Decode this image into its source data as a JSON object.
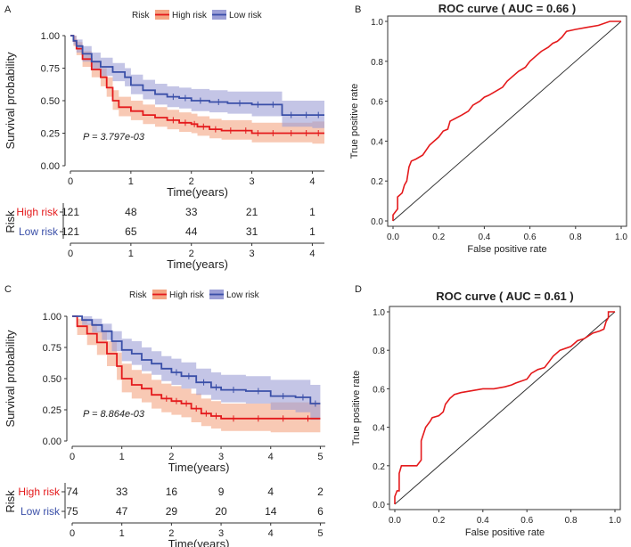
{
  "figure": {
    "panel_labels": [
      "A",
      "B",
      "C",
      "D"
    ]
  },
  "colors": {
    "high": "#e41a1c",
    "low": "#3a4fa8",
    "high_band": "#f4a582",
    "low_band": "#9c9fd6",
    "roc": "#e41a1c",
    "text": "#222222"
  },
  "chart_data": [
    {
      "id": "A",
      "type": "line",
      "title": "",
      "legend": {
        "title": "Risk",
        "items": [
          "High risk",
          "Low risk"
        ],
        "position": "top"
      },
      "xlabel": "Time(years)",
      "ylabel": "Survival probability",
      "xlim": [
        0,
        4.2
      ],
      "ylim": [
        0,
        1
      ],
      "xticks": [
        "0",
        "1",
        "2",
        "3",
        "4"
      ],
      "yticks": [
        "0.00",
        "0.25",
        "0.50",
        "0.75",
        "1.00"
      ],
      "pvalue": "P = 3.797e-03",
      "series": [
        {
          "name": "High risk",
          "x": [
            0,
            0.05,
            0.1,
            0.2,
            0.35,
            0.5,
            0.6,
            0.7,
            0.8,
            1.0,
            1.2,
            1.4,
            1.6,
            1.8,
            2.0,
            2.1,
            2.3,
            2.5,
            2.8,
            3.0,
            3.2,
            3.5,
            3.8,
            4.0,
            4.2
          ],
          "y": [
            1.0,
            0.96,
            0.9,
            0.82,
            0.74,
            0.68,
            0.6,
            0.5,
            0.45,
            0.42,
            0.39,
            0.37,
            0.35,
            0.33,
            0.32,
            0.3,
            0.28,
            0.27,
            0.27,
            0.25,
            0.25,
            0.25,
            0.25,
            0.25,
            0.25
          ],
          "lower": [
            1.0,
            0.92,
            0.85,
            0.76,
            0.68,
            0.61,
            0.53,
            0.43,
            0.38,
            0.35,
            0.32,
            0.3,
            0.28,
            0.26,
            0.25,
            0.23,
            0.21,
            0.2,
            0.2,
            0.18,
            0.18,
            0.18,
            0.18,
            0.17,
            0.17
          ],
          "upper": [
            1.0,
            1.0,
            0.95,
            0.88,
            0.8,
            0.75,
            0.68,
            0.58,
            0.53,
            0.5,
            0.47,
            0.45,
            0.43,
            0.41,
            0.4,
            0.38,
            0.36,
            0.35,
            0.35,
            0.33,
            0.33,
            0.33,
            0.33,
            0.34,
            0.34
          ]
        },
        {
          "name": "Low risk",
          "x": [
            0,
            0.05,
            0.1,
            0.2,
            0.35,
            0.5,
            0.7,
            0.9,
            1.0,
            1.2,
            1.4,
            1.6,
            1.8,
            2.0,
            2.3,
            2.6,
            3.0,
            3.2,
            3.5,
            3.8,
            4.0,
            4.2
          ],
          "y": [
            1.0,
            0.96,
            0.92,
            0.86,
            0.8,
            0.76,
            0.72,
            0.68,
            0.62,
            0.58,
            0.55,
            0.53,
            0.52,
            0.5,
            0.49,
            0.48,
            0.47,
            0.47,
            0.39,
            0.39,
            0.39,
            0.39
          ],
          "lower": [
            1.0,
            0.93,
            0.87,
            0.8,
            0.74,
            0.69,
            0.65,
            0.61,
            0.55,
            0.51,
            0.47,
            0.45,
            0.44,
            0.42,
            0.41,
            0.4,
            0.38,
            0.38,
            0.3,
            0.3,
            0.29,
            0.29
          ],
          "upper": [
            1.0,
            1.0,
            0.97,
            0.92,
            0.87,
            0.83,
            0.79,
            0.75,
            0.7,
            0.66,
            0.63,
            0.61,
            0.6,
            0.59,
            0.58,
            0.57,
            0.57,
            0.57,
            0.5,
            0.5,
            0.5,
            0.5
          ]
        }
      ],
      "risk_table": {
        "title": "Risk",
        "rows": [
          {
            "name": "High risk",
            "values": [
              "121",
              "48",
              "33",
              "21",
              "1"
            ]
          },
          {
            "name": "Low risk",
            "values": [
              "121",
              "65",
              "44",
              "31",
              "1"
            ]
          }
        ],
        "xlabel": "Time(years)",
        "xticks": [
          "0",
          "1",
          "2",
          "3",
          "4"
        ]
      }
    },
    {
      "id": "B",
      "type": "line",
      "title": "ROC curve ( AUC =  0.66 )",
      "xlabel": "False positive rate",
      "ylabel": "True positive rate",
      "xlim": [
        0,
        1
      ],
      "ylim": [
        0,
        1
      ],
      "xticks": [
        "0.0",
        "0.2",
        "0.4",
        "0.6",
        "0.8",
        "1.0"
      ],
      "yticks": [
        "0.0",
        "0.2",
        "0.4",
        "0.6",
        "0.8",
        "1.0"
      ],
      "series": [
        {
          "name": "ROC",
          "x": [
            0,
            0,
            0.02,
            0.02,
            0.04,
            0.05,
            0.06,
            0.07,
            0.08,
            0.1,
            0.13,
            0.16,
            0.18,
            0.2,
            0.22,
            0.24,
            0.25,
            0.3,
            0.33,
            0.35,
            0.38,
            0.4,
            0.42,
            0.45,
            0.48,
            0.5,
            0.52,
            0.55,
            0.58,
            0.6,
            0.62,
            0.65,
            0.68,
            0.7,
            0.72,
            0.74,
            0.76,
            0.8,
            0.85,
            0.9,
            0.95,
            1.0
          ],
          "y": [
            0,
            0.03,
            0.06,
            0.12,
            0.14,
            0.18,
            0.2,
            0.27,
            0.3,
            0.31,
            0.33,
            0.38,
            0.4,
            0.42,
            0.45,
            0.46,
            0.5,
            0.53,
            0.55,
            0.58,
            0.6,
            0.62,
            0.63,
            0.65,
            0.67,
            0.7,
            0.72,
            0.75,
            0.77,
            0.8,
            0.82,
            0.85,
            0.87,
            0.89,
            0.9,
            0.92,
            0.95,
            0.96,
            0.97,
            0.98,
            1.0,
            1.0
          ]
        },
        {
          "name": "Reference",
          "x": [
            0,
            1
          ],
          "y": [
            0,
            1
          ]
        }
      ]
    },
    {
      "id": "C",
      "type": "line",
      "title": "",
      "legend": {
        "title": "Risk",
        "items": [
          "High risk",
          "Low risk"
        ],
        "position": "top"
      },
      "xlabel": "Time(years)",
      "ylabel": "Survival probability",
      "xlim": [
        0,
        5.1
      ],
      "ylim": [
        0,
        1
      ],
      "xticks": [
        "0",
        "1",
        "2",
        "3",
        "4",
        "5"
      ],
      "yticks": [
        "0.00",
        "0.25",
        "0.50",
        "0.75",
        "1.00"
      ],
      "pvalue": "P = 8.864e-03",
      "series": [
        {
          "name": "High risk",
          "x": [
            0,
            0.1,
            0.3,
            0.5,
            0.7,
            0.9,
            1.0,
            1.2,
            1.4,
            1.6,
            1.8,
            2.0,
            2.2,
            2.4,
            2.6,
            2.8,
            3.0,
            3.5,
            4.0,
            4.5,
            5.0
          ],
          "y": [
            1.0,
            0.92,
            0.86,
            0.79,
            0.7,
            0.6,
            0.5,
            0.45,
            0.42,
            0.37,
            0.34,
            0.32,
            0.3,
            0.26,
            0.22,
            0.2,
            0.18,
            0.18,
            0.18,
            0.18,
            0.18
          ],
          "lower": [
            1.0,
            0.85,
            0.77,
            0.69,
            0.6,
            0.49,
            0.39,
            0.34,
            0.31,
            0.26,
            0.23,
            0.21,
            0.19,
            0.15,
            0.12,
            0.1,
            0.08,
            0.08,
            0.07,
            0.07,
            0.07
          ],
          "upper": [
            1.0,
            0.98,
            0.94,
            0.88,
            0.8,
            0.71,
            0.62,
            0.57,
            0.54,
            0.49,
            0.46,
            0.44,
            0.42,
            0.38,
            0.34,
            0.32,
            0.3,
            0.3,
            0.31,
            0.31,
            0.31
          ]
        },
        {
          "name": "Low risk",
          "x": [
            0,
            0.2,
            0.4,
            0.6,
            0.8,
            1.0,
            1.2,
            1.4,
            1.6,
            1.8,
            2.0,
            2.2,
            2.5,
            2.8,
            3.0,
            3.5,
            4.0,
            4.5,
            4.8,
            5.0
          ],
          "y": [
            1.0,
            0.97,
            0.93,
            0.88,
            0.8,
            0.73,
            0.7,
            0.65,
            0.62,
            0.58,
            0.55,
            0.52,
            0.47,
            0.43,
            0.41,
            0.4,
            0.36,
            0.35,
            0.3,
            0.3
          ],
          "lower": [
            1.0,
            0.93,
            0.87,
            0.81,
            0.72,
            0.64,
            0.61,
            0.56,
            0.53,
            0.48,
            0.45,
            0.42,
            0.37,
            0.33,
            0.31,
            0.3,
            0.25,
            0.23,
            0.17,
            0.17
          ],
          "upper": [
            1.0,
            1.0,
            0.98,
            0.94,
            0.88,
            0.82,
            0.8,
            0.75,
            0.72,
            0.68,
            0.66,
            0.63,
            0.58,
            0.55,
            0.53,
            0.52,
            0.49,
            0.49,
            0.45,
            0.45
          ]
        }
      ],
      "risk_table": {
        "title": "Risk",
        "rows": [
          {
            "name": "High risk",
            "values": [
              "74",
              "33",
              "16",
              "9",
              "4",
              "2"
            ]
          },
          {
            "name": "Low risk",
            "values": [
              "75",
              "47",
              "29",
              "20",
              "14",
              "6"
            ]
          }
        ],
        "xlabel": "Time(years)",
        "xticks": [
          "0",
          "1",
          "2",
          "3",
          "4",
          "5"
        ]
      }
    },
    {
      "id": "D",
      "type": "line",
      "title": "ROC curve ( AUC =  0.61 )",
      "xlabel": "False positive rate",
      "ylabel": "True positive rate",
      "xlim": [
        0,
        1
      ],
      "ylim": [
        0,
        1
      ],
      "xticks": [
        "0.0",
        "0.2",
        "0.4",
        "0.6",
        "0.8",
        "1.0"
      ],
      "yticks": [
        "0.0",
        "0.2",
        "0.4",
        "0.6",
        "0.8",
        "1.0"
      ],
      "series": [
        {
          "name": "ROC",
          "x": [
            0,
            0,
            0.01,
            0.02,
            0.02,
            0.03,
            0.1,
            0.12,
            0.12,
            0.14,
            0.16,
            0.17,
            0.2,
            0.22,
            0.23,
            0.25,
            0.27,
            0.3,
            0.35,
            0.4,
            0.45,
            0.5,
            0.53,
            0.55,
            0.6,
            0.62,
            0.65,
            0.68,
            0.7,
            0.72,
            0.75,
            0.8,
            0.83,
            0.86,
            0.9,
            0.93,
            0.95,
            0.96,
            0.97,
            0.97,
            1.0
          ],
          "y": [
            0,
            0.04,
            0.07,
            0.07,
            0.16,
            0.2,
            0.2,
            0.23,
            0.33,
            0.4,
            0.43,
            0.45,
            0.46,
            0.48,
            0.52,
            0.55,
            0.57,
            0.58,
            0.59,
            0.6,
            0.6,
            0.61,
            0.62,
            0.63,
            0.65,
            0.68,
            0.7,
            0.71,
            0.74,
            0.77,
            0.8,
            0.82,
            0.85,
            0.86,
            0.89,
            0.9,
            0.91,
            0.95,
            0.97,
            1.0,
            1.0
          ]
        },
        {
          "name": "Reference",
          "x": [
            0,
            1
          ],
          "y": [
            0,
            1
          ]
        }
      ]
    }
  ]
}
